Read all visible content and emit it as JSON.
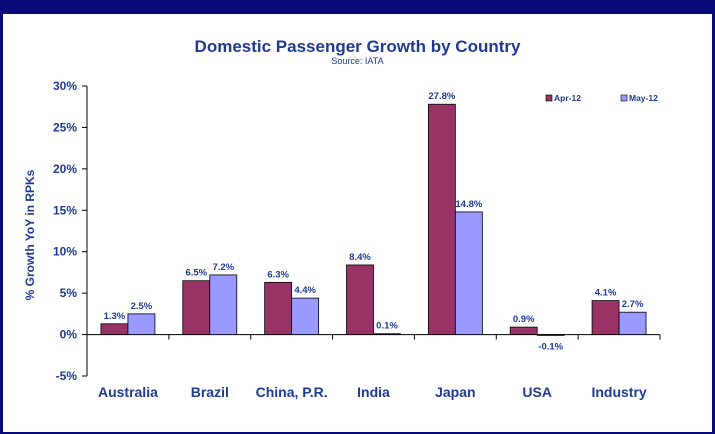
{
  "colors": {
    "series_1": "#993366",
    "series_2": "#9999ff",
    "text": "#1f3a93",
    "frame": "#0a0a7a"
  },
  "chart_data": {
    "type": "bar",
    "title": "Domestic Passenger Growth by Country",
    "subtitle": "Source: IATA",
    "xlabel": "",
    "ylabel": "% Growth YoY in RPKs",
    "ylim": [
      -5,
      30
    ],
    "yticks": [
      "-5%",
      "0%",
      "5%",
      "10%",
      "15%",
      "20%",
      "25%",
      "30%"
    ],
    "ytick_values": [
      -5,
      0,
      5,
      10,
      15,
      20,
      25,
      30
    ],
    "grid": false,
    "legend_position": "top-right",
    "categories": [
      "Australia",
      "Brazil",
      "China, P.R.",
      "India",
      "Japan",
      "USA",
      "Industry"
    ],
    "series": [
      {
        "name": "Apr-12",
        "values": [
          1.3,
          6.5,
          6.3,
          8.4,
          27.8,
          0.9,
          4.1
        ],
        "labels": [
          "1.3%",
          "6.5%",
          "6.3%",
          "8.4%",
          "27.8%",
          "0.9%",
          "4.1%"
        ]
      },
      {
        "name": "May-12",
        "values": [
          2.5,
          7.2,
          4.4,
          0.1,
          14.8,
          -0.1,
          2.7
        ],
        "labels": [
          "2.5%",
          "7.2%",
          "4.4%",
          "0.1%",
          "14.8%",
          "-0.1%",
          "2.7%"
        ]
      }
    ]
  }
}
